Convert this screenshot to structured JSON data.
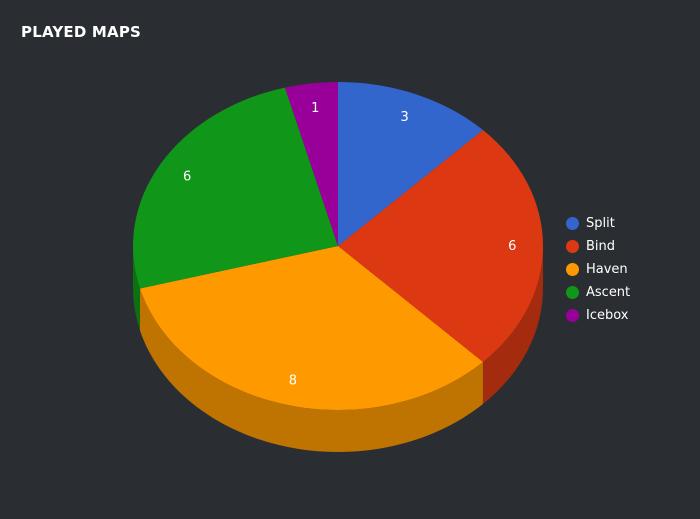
{
  "title": "PLAYED MAPS",
  "chart_data": {
    "type": "pie",
    "style": "3d",
    "title": "PLAYED MAPS",
    "legend_position": "right",
    "slices": [
      {
        "name": "Split",
        "value": 3,
        "color": "#3366cc"
      },
      {
        "name": "Bind",
        "value": 6,
        "color": "#dc3912"
      },
      {
        "name": "Haven",
        "value": 8,
        "color": "#ff9900"
      },
      {
        "name": "Ascent",
        "value": 6,
        "color": "#109618"
      },
      {
        "name": "Icebox",
        "value": 1,
        "color": "#990099"
      }
    ]
  }
}
